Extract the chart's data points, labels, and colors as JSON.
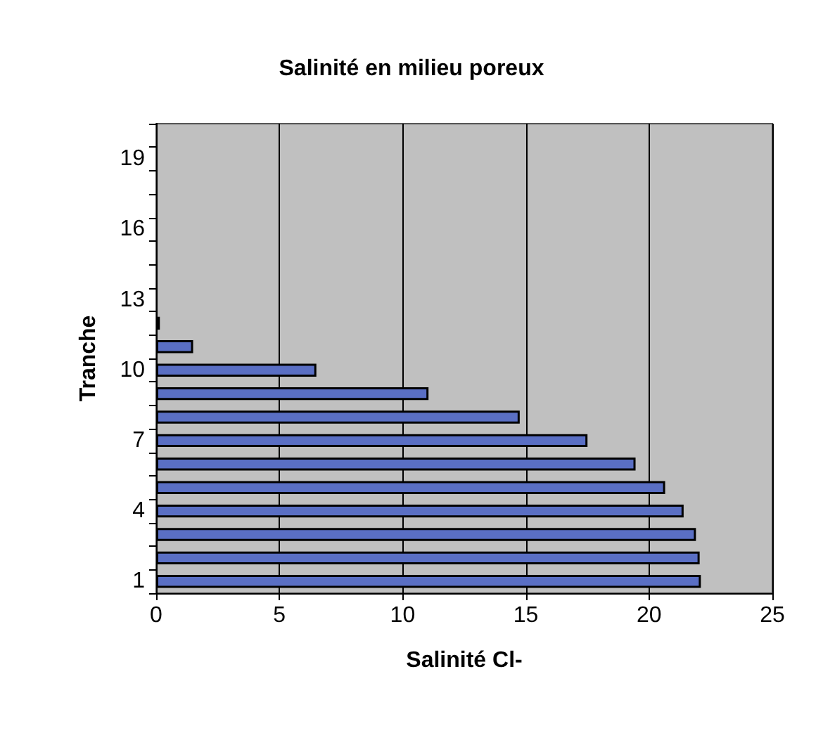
{
  "chart_data": {
    "type": "bar",
    "orientation": "horizontal",
    "title": "Salinité en milieu poreux",
    "xlabel": "Salinité Cl-",
    "ylabel": "Tranche",
    "categories": [
      null,
      "19",
      null,
      null,
      "16",
      null,
      null,
      "13",
      null,
      null,
      "10",
      null,
      null,
      "7",
      null,
      null,
      "4",
      null,
      null,
      "1"
    ],
    "values": [
      null,
      null,
      null,
      null,
      null,
      null,
      null,
      null,
      0.15,
      1.5,
      6.5,
      11.05,
      14.75,
      17.5,
      19.45,
      20.65,
      21.4,
      21.9,
      22.05,
      22.1
    ],
    "color": "#5a6fc4",
    "xlim": [
      0,
      25
    ],
    "xticks": [
      0,
      5,
      10,
      15,
      20,
      25
    ],
    "grid": "x"
  }
}
